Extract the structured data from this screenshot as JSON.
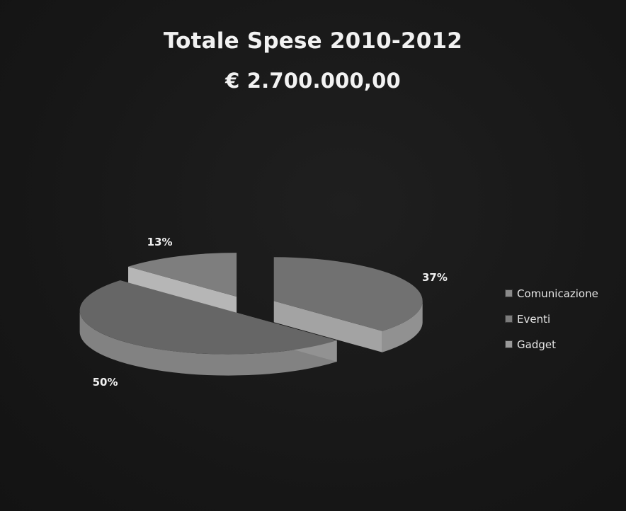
{
  "chart_data": {
    "type": "pie",
    "title": "Totale Spese 2010-2012",
    "subtitle": "€ 2.700.000,00",
    "categories": [
      "Comunicazione",
      "Eventi",
      "Gadget"
    ],
    "values": [
      37,
      50,
      13
    ],
    "labels": [
      "37%",
      "50%",
      "13%"
    ],
    "legend_position": "right",
    "three_d": true,
    "exploded": true,
    "colors": [
      "#8a8a8a",
      "#7c7c7c",
      "#9a9a9a"
    ]
  }
}
